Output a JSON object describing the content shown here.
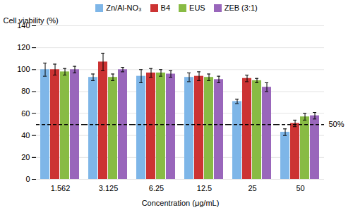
{
  "chart_data": {
    "type": "bar",
    "categories": [
      "1.562",
      "3.125",
      "6.25",
      "12.5",
      "25",
      "50"
    ],
    "series": [
      {
        "name": "Zn/Al-NO₃",
        "color": "#7EB6E8",
        "values": [
          100,
          93,
          94,
          93,
          71,
          43
        ],
        "errors": [
          6,
          3,
          6,
          4,
          2,
          3
        ]
      },
      {
        "name": "B4",
        "color": "#CC3333",
        "values": [
          100,
          107,
          97,
          94,
          92,
          51
        ],
        "errors": [
          5,
          8,
          4,
          4,
          3,
          3
        ]
      },
      {
        "name": "EUS",
        "color": "#88BB44",
        "values": [
          98,
          93,
          97,
          93,
          90,
          57
        ],
        "errors": [
          3,
          3,
          3,
          3,
          2,
          3
        ]
      },
      {
        "name": "ZEB (3:1)",
        "color": "#9966BB",
        "values": [
          100,
          100,
          96,
          91,
          84,
          58
        ],
        "errors": [
          3,
          2,
          3,
          3,
          4,
          3
        ]
      }
    ],
    "xlabel": "Concentration (μg/mL)",
    "ylabel": "Cell viability (%)",
    "ylim": [
      0,
      140
    ],
    "yticks": [
      0,
      20,
      40,
      60,
      80,
      100,
      120,
      140
    ],
    "grid": true,
    "legend": "top",
    "annotations": [
      {
        "type": "hline",
        "y": 50,
        "text": "50%",
        "line_style": "dashed"
      }
    ]
  }
}
